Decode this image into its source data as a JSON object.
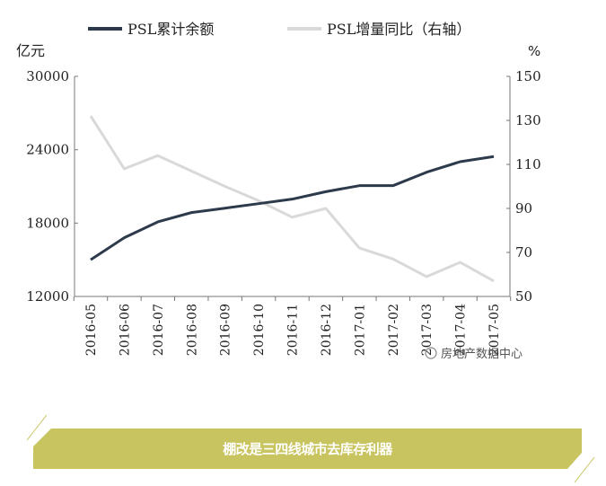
{
  "chart_data": {
    "type": "line",
    "categories": [
      "2016-05",
      "2016-06",
      "2016-07",
      "2016-08",
      "2016-09",
      "2016-10",
      "2016-11",
      "2016-12",
      "2017-01",
      "2017-02",
      "2017-03",
      "2017-04",
      "2017-05"
    ],
    "series": [
      {
        "name": "PSL累计余额",
        "axis": "left",
        "color": "#2d3a4b",
        "values": [
          15000,
          16800,
          18100,
          18860,
          19220,
          19590,
          19960,
          20570,
          21060,
          21060,
          22160,
          23020,
          23440
        ]
      },
      {
        "name": "PSL增量同比（右轴）",
        "axis": "right",
        "color": "#d9d9d9",
        "values": [
          132,
          108,
          114,
          107,
          100,
          93.5,
          86,
          90,
          72,
          67,
          59,
          65.5,
          57
        ]
      }
    ],
    "left_axis": {
      "label": "亿元",
      "ylim": [
        12000,
        30000
      ],
      "ticks": [
        12000,
        18000,
        24000,
        30000
      ]
    },
    "right_axis": {
      "label": "%",
      "ylim": [
        50,
        150
      ],
      "ticks": [
        50,
        70,
        90,
        110,
        130,
        150
      ]
    },
    "legend": "top",
    "grid": false
  },
  "watermark": "房地产数据中心",
  "banner": {
    "text": "棚改是三四线城市去库存利器"
  }
}
